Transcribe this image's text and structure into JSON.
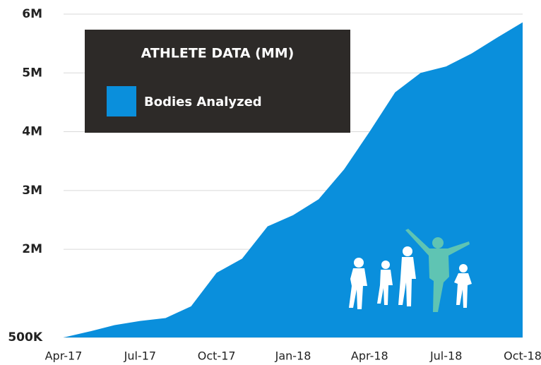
{
  "chart_data": {
    "type": "area",
    "title": "ATHLETE DATA (MM)",
    "categories": [
      "Apr-17",
      null,
      null,
      "Jul-17",
      null,
      null,
      "Oct-17",
      null,
      null,
      "Jan-18",
      null,
      null,
      "Apr-18",
      null,
      null,
      "Jul-18",
      null,
      null,
      "Oct-18"
    ],
    "series": [
      {
        "name": "Bodies Analyzed",
        "color": "#0a8fdc",
        "values": [
          500000,
          600000,
          710000,
          780000,
          830000,
          1030000,
          1600000,
          1840000,
          2390000,
          2580000,
          2850000,
          3360000,
          4000000,
          4670000,
          5000000,
          5110000,
          5330000,
          5600000,
          5860000
        ]
      }
    ],
    "ylim": [
      500000,
      6000000
    ],
    "yticks": [
      {
        "value": 500000,
        "label": "500K"
      },
      {
        "value": 2000000,
        "label": "2M"
      },
      {
        "value": 3000000,
        "label": "3M"
      },
      {
        "value": 4000000,
        "label": "4M"
      },
      {
        "value": 5000000,
        "label": "5M"
      },
      {
        "value": 6000000,
        "label": "6M"
      }
    ],
    "grid": true
  }
}
